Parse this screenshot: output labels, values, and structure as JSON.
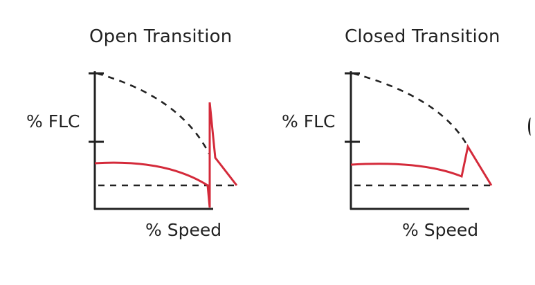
{
  "colors": {
    "axis": "#222222",
    "current_curve": "#d42a3a",
    "dashed_reference": "#222222"
  },
  "panels": [
    {
      "title": "Open Transition",
      "ylabel": "% FLC",
      "xlabel": "% Speed"
    },
    {
      "title": "Closed Transition",
      "ylabel": "% FLC",
      "xlabel": "% Speed"
    }
  ]
}
